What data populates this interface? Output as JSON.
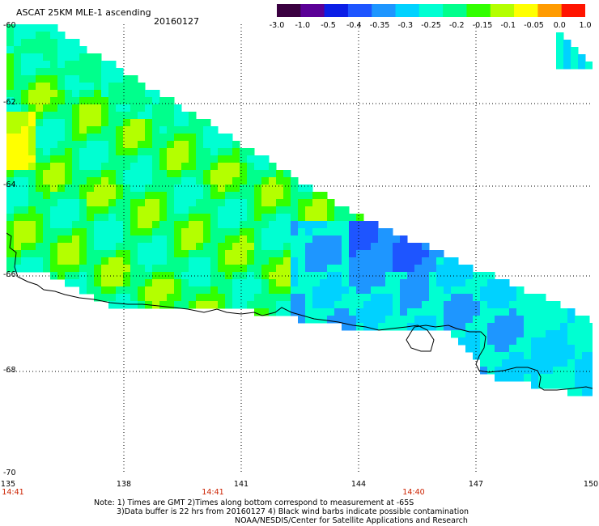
{
  "header": {
    "title": "ASCAT 25KM MLE-1 ascending",
    "date": "20160127"
  },
  "colorbar": {
    "labels": [
      "-3.0",
      "-1.0",
      "-0.5",
      "-0.4",
      "-0.35",
      "-0.3",
      "-0.25",
      "-0.2",
      "-0.15",
      "-0.1",
      "-0.05",
      "0.0",
      "1.0"
    ],
    "colors": [
      "#3a0040",
      "#5a0096",
      "#0b1ee6",
      "#1e55ff",
      "#1e96ff",
      "#00d2ff",
      "#00ffd2",
      "#00ff8c",
      "#32ff00",
      "#b4ff00",
      "#ffff00",
      "#ff9b00",
      "#ff1400"
    ]
  },
  "map": {
    "lat_labels": [
      "-60",
      "-62",
      "-64",
      "-66",
      "-68",
      "-70"
    ],
    "lon_labels": [
      "135",
      "138",
      "141",
      "144",
      "147",
      "150"
    ],
    "time_labels": [
      "14:41",
      "14:41",
      "14:40"
    ]
  },
  "notes": [
    "Note: 1) Times are GMT 2)Times along bottom correspond to measurement at -65S",
    "3)Data buffer is 22 hrs from 20160127 4) Black wind barbs indicate possible contamination",
    "NOAA/NESDIS/Center for Satellite Applications and Research"
  ]
}
